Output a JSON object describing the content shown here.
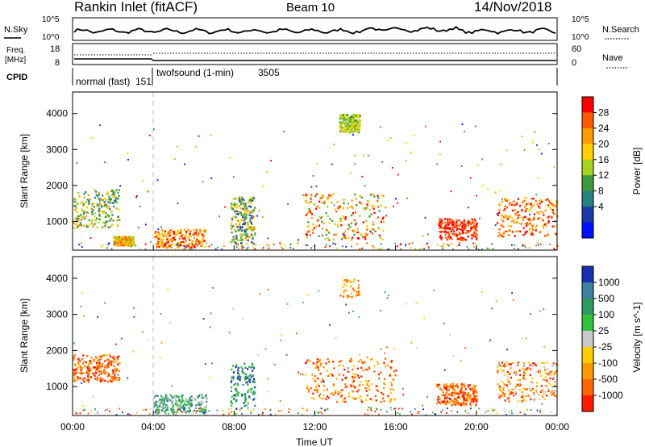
{
  "header": {
    "station": "Rankin Inlet (fitACF)",
    "beam": "Beam 10",
    "date": "14/Nov/2018"
  },
  "noise_panel": {
    "left_label": "N.Sky",
    "right_label": "N.Search",
    "left_ticks": [
      "10^5",
      "10^0"
    ],
    "right_ticks": [
      "10^5",
      "10^0"
    ]
  },
  "freq_panel": {
    "left_label_1": "Freq.",
    "left_label_2": "[MHz]",
    "right_label": "Nave",
    "left_ticks": [
      "18",
      "8"
    ],
    "right_ticks": [
      "60",
      "0"
    ]
  },
  "cpid": {
    "label": "CPID",
    "segments": [
      {
        "name": "normal (fast)",
        "id": "151",
        "start_h": 0,
        "end_h": 4.0
      },
      {
        "name": "twofsound (1-min)",
        "id": "3505",
        "start_h": 4.0,
        "end_h": 24.0
      }
    ]
  },
  "power_colorbar": {
    "label": "Power [dB]",
    "ticks": [
      "28",
      "24",
      "20",
      "16",
      "12",
      "8",
      "4"
    ],
    "colors": [
      "#ff0000",
      "#ff5a00",
      "#ff9b00",
      "#ffd000",
      "#a6d320",
      "#3c9a3c",
      "#2a8080",
      "#1a3aa8",
      "#0010ff"
    ]
  },
  "velocity_colorbar": {
    "label": "Velocity [m s^-1]",
    "ticks": [
      "1000",
      "500",
      "100",
      "25",
      "-25",
      "-100",
      "-500",
      "-1000"
    ],
    "colors": [
      "#1830b0",
      "#3f7fa0",
      "#2e9a60",
      "#33c23a",
      "#c8c8c8",
      "#ffcc00",
      "#ff9900",
      "#ff6600",
      "#ff1a00"
    ]
  },
  "chart_data": [
    {
      "type": "heatmap",
      "title": "",
      "quantity": "Power",
      "xlabel": "",
      "ylabel": "Slant Range [km]",
      "xlim_hours": [
        0,
        24
      ],
      "ylim_km": [
        200,
        4600
      ],
      "yticks": [
        "1000",
        "2000",
        "3000",
        "4000"
      ],
      "regions": [
        {
          "t0": 0.0,
          "t1": 2.3,
          "r0": 850,
          "r1": 1900,
          "level": "12-24 dB"
        },
        {
          "t0": 2.0,
          "t1": 3.0,
          "r0": 350,
          "r1": 600,
          "level": "16-24 dB"
        },
        {
          "t0": 4.0,
          "t1": 6.6,
          "r0": 300,
          "r1": 800,
          "level": "20-28 dB"
        },
        {
          "t0": 7.8,
          "t1": 9.0,
          "r0": 400,
          "r1": 1700,
          "level": "8-24 dB"
        },
        {
          "t0": 11.5,
          "t1": 15.5,
          "r0": 500,
          "r1": 1800,
          "level": "12-28 dB"
        },
        {
          "t0": 13.2,
          "t1": 14.2,
          "r0": 3500,
          "r1": 4000,
          "level": "12-16 dB"
        },
        {
          "t0": 18.1,
          "t1": 20.0,
          "r0": 500,
          "r1": 1100,
          "level": "28 dB"
        },
        {
          "t0": 21.0,
          "t1": 24.0,
          "r0": 600,
          "r1": 1700,
          "level": "20-28 dB"
        }
      ]
    },
    {
      "type": "heatmap",
      "title": "",
      "quantity": "Velocity",
      "xlabel": "Time UT",
      "ylabel": "Slant Range [km]",
      "xlim_hours": [
        0,
        24
      ],
      "ylim_km": [
        200,
        4600
      ],
      "yticks": [
        "1000",
        "2000",
        "3000",
        "4000"
      ],
      "xticks": [
        "00:00",
        "04:00",
        "08:00",
        "12:00",
        "16:00",
        "20:00",
        "00:00"
      ],
      "regions": [
        {
          "t0": 0.0,
          "t1": 2.3,
          "r0": 1150,
          "r1": 1900,
          "level": "-100 to -500 m/s"
        },
        {
          "t0": 4.0,
          "t1": 6.6,
          "r0": 300,
          "r1": 800,
          "level": "25 to 500 m/s"
        },
        {
          "t0": 11.5,
          "t1": 16.0,
          "r0": 600,
          "r1": 1800,
          "level": "-100 to -500 m/s"
        },
        {
          "t0": 18.0,
          "t1": 20.0,
          "r0": 500,
          "r1": 1100,
          "level": "-100 to -500 m/s"
        },
        {
          "t0": 21.0,
          "t1": 24.0,
          "r0": 600,
          "r1": 1700,
          "level": "-25 to -500 m/s"
        }
      ]
    }
  ]
}
